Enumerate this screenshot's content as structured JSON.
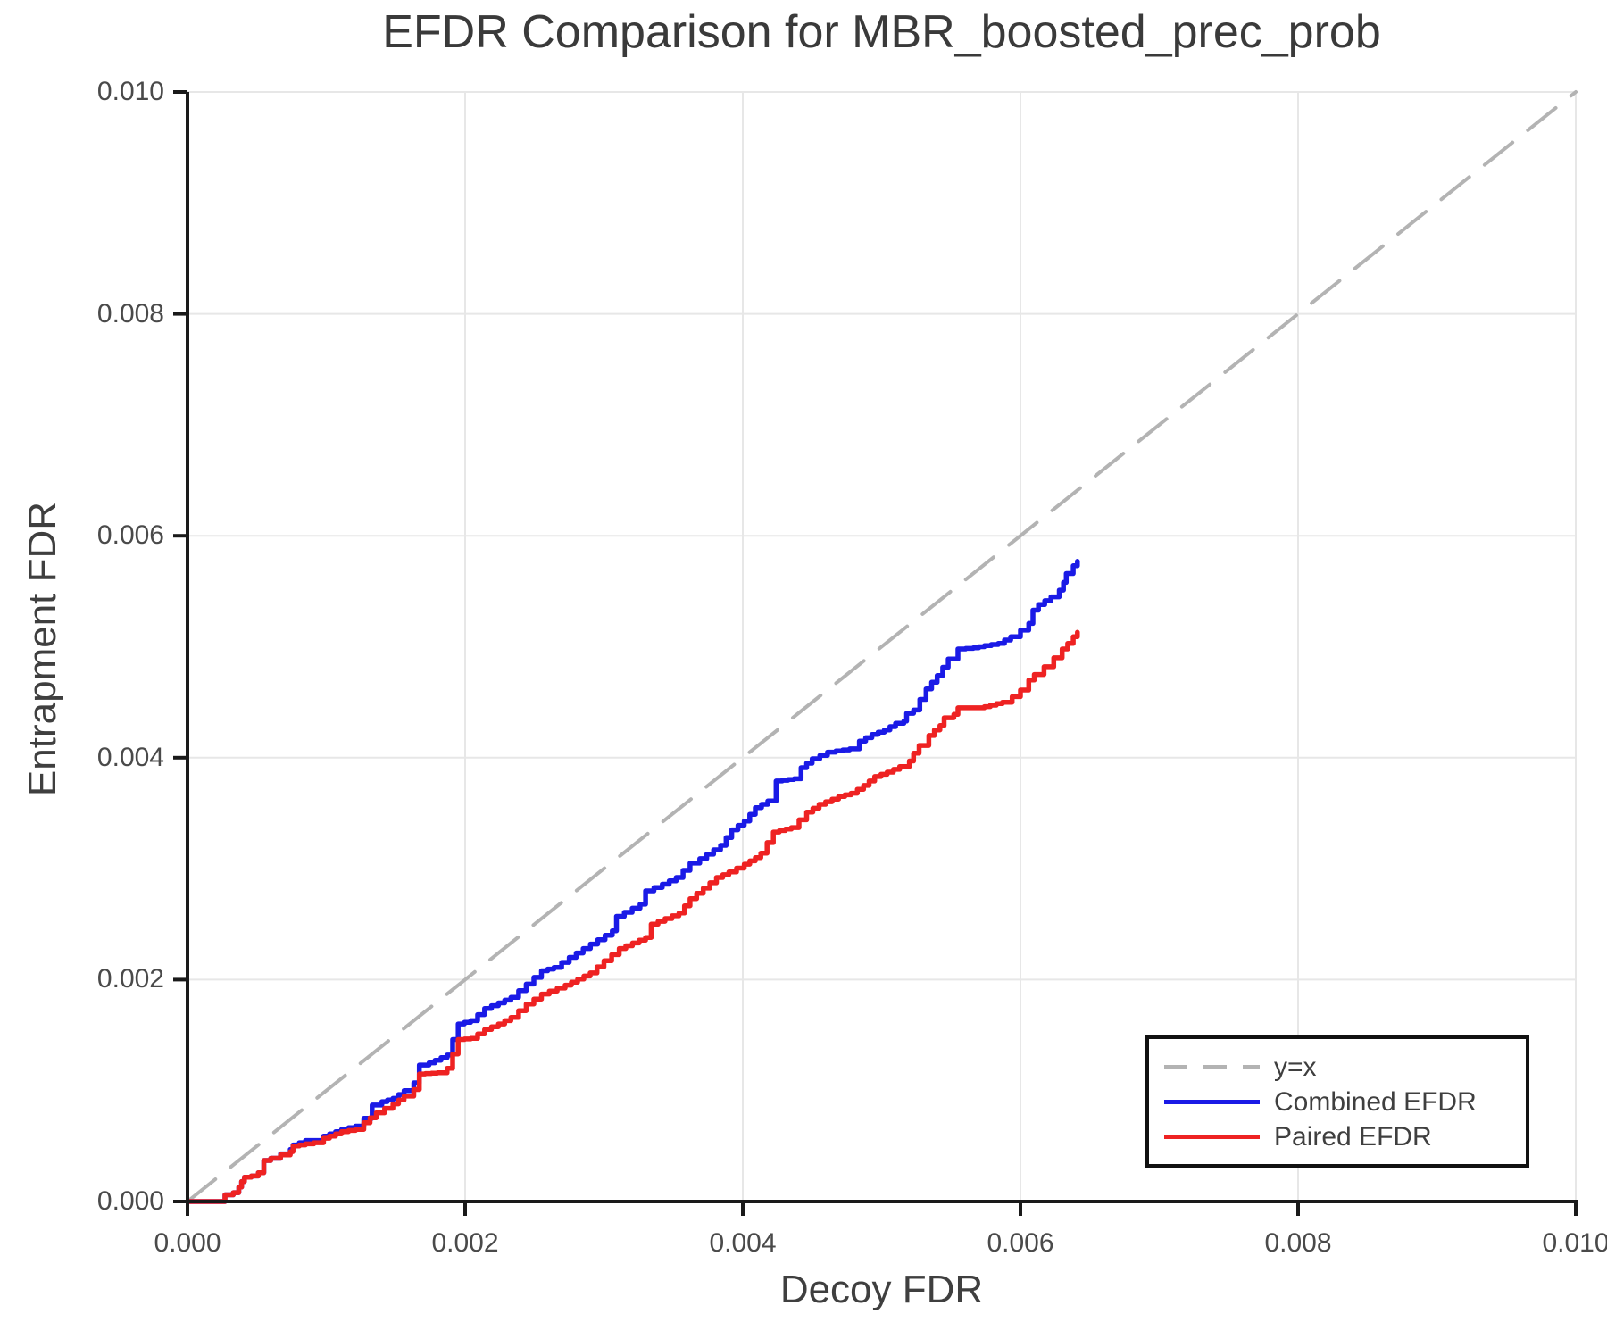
{
  "figure": {
    "background": "#ffffff",
    "text_color": "#3f3f3f",
    "spine_color": "#1a1a1a",
    "grid_color": "#e7e7e7"
  },
  "chart_data": {
    "type": "line",
    "title": "EFDR Comparison for MBR_boosted_prec_prob",
    "xlabel": "Decoy FDR",
    "ylabel": "Entrapment FDR",
    "xlim": [
      0,
      0.01
    ],
    "ylim": [
      0,
      0.01
    ],
    "xticks": {
      "values": [
        0,
        0.002,
        0.004,
        0.006,
        0.008,
        0.01
      ],
      "labels": [
        "0.000",
        "0.002",
        "0.004",
        "0.006",
        "0.008",
        "0.010"
      ]
    },
    "yticks": {
      "values": [
        0,
        0.002,
        0.004,
        0.006,
        0.008,
        0.01
      ],
      "labels": [
        "0.000",
        "0.002",
        "0.004",
        "0.006",
        "0.008",
        "0.010"
      ]
    },
    "grid": true,
    "legend_position": "lower right",
    "series": [
      {
        "name": "y=x",
        "color": "#b3b3b3",
        "style": "dashed",
        "step": false,
        "linewidth": 4,
        "points": [
          [
            0,
            0
          ],
          [
            0.01,
            0.01
          ]
        ]
      },
      {
        "name": "Combined EFDR",
        "color": "#1a1ae6",
        "style": "solid",
        "step": true,
        "linewidth": 5.5,
        "points": [
          [
            0.0,
            0.0
          ],
          [
            0.00027,
            0.0
          ],
          [
            0.00027,
            6e-05
          ],
          [
            0.00032,
            6e-05
          ],
          [
            0.00033,
            8e-05
          ],
          [
            0.00037,
            8e-05
          ],
          [
            0.00037,
            0.00013
          ],
          [
            0.00039,
            0.00013
          ],
          [
            0.00039,
            0.00018
          ],
          [
            0.00041,
            0.00022
          ],
          [
            0.00046,
            0.00023
          ],
          [
            0.0005,
            0.00023
          ],
          [
            0.00051,
            0.00026
          ],
          [
            0.00055,
            0.00037
          ],
          [
            0.00059,
            0.00037
          ],
          [
            0.0006,
            0.00039
          ],
          [
            0.00067,
            0.00043
          ],
          [
            0.00074,
            0.00047
          ],
          [
            0.00076,
            0.00051
          ],
          [
            0.00085,
            0.00055
          ],
          [
            0.00091,
            0.00055
          ],
          [
            0.00098,
            0.00059
          ],
          [
            0.00111,
            0.00065
          ],
          [
            0.00121,
            0.00068
          ],
          [
            0.00127,
            0.00075
          ],
          [
            0.00133,
            0.00087
          ],
          [
            0.0014,
            0.0009
          ],
          [
            0.00148,
            0.00093
          ],
          [
            0.00156,
            0.001
          ],
          [
            0.00163,
            0.00107
          ],
          [
            0.00167,
            0.00123
          ],
          [
            0.00174,
            0.00125
          ],
          [
            0.00187,
            0.00132
          ],
          [
            0.00195,
            0.0016
          ],
          [
            0.00204,
            0.00163
          ],
          [
            0.00214,
            0.00174
          ],
          [
            0.00224,
            0.00179
          ],
          [
            0.00233,
            0.00184
          ],
          [
            0.00244,
            0.00196
          ],
          [
            0.00255,
            0.00208
          ],
          [
            0.00264,
            0.00211
          ],
          [
            0.00275,
            0.0022
          ],
          [
            0.00285,
            0.00228
          ],
          [
            0.00306,
            0.00244
          ],
          [
            0.00309,
            0.00257
          ],
          [
            0.00326,
            0.00268
          ],
          [
            0.0033,
            0.0028
          ],
          [
            0.00342,
            0.00286
          ],
          [
            0.00352,
            0.00292
          ],
          [
            0.00362,
            0.00305
          ],
          [
            0.00369,
            0.00309
          ],
          [
            0.00384,
            0.00321
          ],
          [
            0.00392,
            0.00335
          ],
          [
            0.00401,
            0.00343
          ],
          [
            0.00409,
            0.00355
          ],
          [
            0.00418,
            0.00361
          ],
          [
            0.00424,
            0.00379
          ],
          [
            0.00437,
            0.00381
          ],
          [
            0.00442,
            0.00391
          ],
          [
            0.0045,
            0.00399
          ],
          [
            0.00461,
            0.00405
          ],
          [
            0.00467,
            0.00406
          ],
          [
            0.00477,
            0.00408
          ],
          [
            0.00484,
            0.00415
          ],
          [
            0.00493,
            0.00421
          ],
          [
            0.00502,
            0.00425
          ],
          [
            0.0051,
            0.00431
          ],
          [
            0.00516,
            0.00433
          ],
          [
            0.00518,
            0.0044
          ],
          [
            0.00523,
            0.00443
          ],
          [
            0.00532,
            0.00462
          ],
          [
            0.0054,
            0.00474
          ],
          [
            0.00548,
            0.00489
          ],
          [
            0.00555,
            0.00498
          ],
          [
            0.00566,
            0.00499
          ],
          [
            0.00574,
            0.00501
          ],
          [
            0.00584,
            0.00503
          ],
          [
            0.00593,
            0.00509
          ],
          [
            0.006,
            0.00515
          ],
          [
            0.00606,
            0.00521
          ],
          [
            0.00609,
            0.00533
          ],
          [
            0.00613,
            0.00538
          ],
          [
            0.00622,
            0.00545
          ],
          [
            0.00628,
            0.00551
          ],
          [
            0.00631,
            0.00558
          ],
          [
            0.00633,
            0.00566
          ],
          [
            0.00638,
            0.00573
          ],
          [
            0.00641,
            0.00577
          ]
        ]
      },
      {
        "name": "Paired EFDR",
        "color": "#ee2222",
        "style": "solid",
        "step": true,
        "linewidth": 5.5,
        "points": [
          [
            0.0,
            0.0
          ],
          [
            0.00027,
            0.0
          ],
          [
            0.00027,
            6e-05
          ],
          [
            0.00032,
            6e-05
          ],
          [
            0.00033,
            8e-05
          ],
          [
            0.00037,
            8e-05
          ],
          [
            0.00037,
            0.00013
          ],
          [
            0.00039,
            0.00013
          ],
          [
            0.00039,
            0.00018
          ],
          [
            0.00041,
            0.00022
          ],
          [
            0.00046,
            0.00023
          ],
          [
            0.0005,
            0.00023
          ],
          [
            0.00051,
            0.00026
          ],
          [
            0.00055,
            0.00037
          ],
          [
            0.00059,
            0.00037
          ],
          [
            0.0006,
            0.00039
          ],
          [
            0.00067,
            0.00042
          ],
          [
            0.00074,
            0.00045
          ],
          [
            0.00076,
            0.0005
          ],
          [
            0.00085,
            0.00052
          ],
          [
            0.00091,
            0.00053
          ],
          [
            0.00098,
            0.00057
          ],
          [
            0.00111,
            0.00063
          ],
          [
            0.00121,
            0.00065
          ],
          [
            0.00127,
            0.00071
          ],
          [
            0.00136,
            0.0008
          ],
          [
            0.00148,
            0.00088
          ],
          [
            0.00156,
            0.00095
          ],
          [
            0.00163,
            0.00101
          ],
          [
            0.00167,
            0.00115
          ],
          [
            0.0018,
            0.00116
          ],
          [
            0.00187,
            0.0012
          ],
          [
            0.00195,
            0.00146
          ],
          [
            0.00204,
            0.00147
          ],
          [
            0.00214,
            0.00155
          ],
          [
            0.00224,
            0.0016
          ],
          [
            0.00233,
            0.00166
          ],
          [
            0.00244,
            0.00178
          ],
          [
            0.00255,
            0.00187
          ],
          [
            0.00272,
            0.00195
          ],
          [
            0.0029,
            0.00206
          ],
          [
            0.003,
            0.00217
          ],
          [
            0.00311,
            0.00228
          ],
          [
            0.0033,
            0.00238
          ],
          [
            0.00334,
            0.0025
          ],
          [
            0.00354,
            0.0026
          ],
          [
            0.00362,
            0.00273
          ],
          [
            0.00381,
            0.00292
          ],
          [
            0.0039,
            0.00297
          ],
          [
            0.00401,
            0.00304
          ],
          [
            0.00409,
            0.0031
          ],
          [
            0.00413,
            0.00314
          ],
          [
            0.00422,
            0.00333
          ],
          [
            0.00435,
            0.00337
          ],
          [
            0.00446,
            0.00351
          ],
          [
            0.00455,
            0.00358
          ],
          [
            0.00469,
            0.00365
          ],
          [
            0.00478,
            0.00368
          ],
          [
            0.00487,
            0.00375
          ],
          [
            0.00495,
            0.00383
          ],
          [
            0.00504,
            0.00387
          ],
          [
            0.00513,
            0.00392
          ],
          [
            0.0052,
            0.00397
          ],
          [
            0.00523,
            0.00404
          ],
          [
            0.00527,
            0.00411
          ],
          [
            0.00534,
            0.0042
          ],
          [
            0.00538,
            0.00425
          ],
          [
            0.00542,
            0.00429
          ],
          [
            0.00545,
            0.00436
          ],
          [
            0.00552,
            0.00439
          ],
          [
            0.00555,
            0.00445
          ],
          [
            0.00572,
            0.00445
          ],
          [
            0.00574,
            0.00446
          ],
          [
            0.00587,
            0.0045
          ],
          [
            0.00594,
            0.00455
          ],
          [
            0.006,
            0.00461
          ],
          [
            0.00606,
            0.0047
          ],
          [
            0.0061,
            0.00475
          ],
          [
            0.00617,
            0.00482
          ],
          [
            0.00624,
            0.0049
          ],
          [
            0.0063,
            0.00498
          ],
          [
            0.00634,
            0.00503
          ],
          [
            0.00638,
            0.00509
          ],
          [
            0.00641,
            0.00513
          ]
        ]
      }
    ]
  },
  "legend": {
    "entries": [
      {
        "label": "y=x",
        "swatch": "dashed-gray"
      },
      {
        "label": "Combined EFDR",
        "swatch": "solid-blue"
      },
      {
        "label": "Paired EFDR",
        "swatch": "solid-red"
      }
    ]
  }
}
